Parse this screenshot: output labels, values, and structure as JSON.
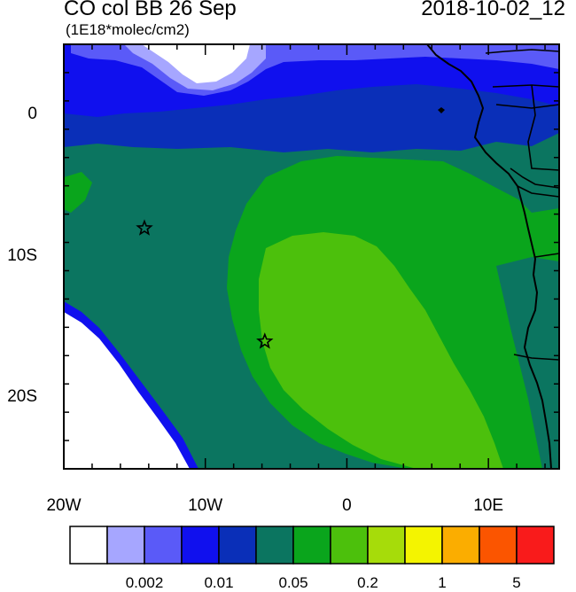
{
  "header": {
    "title": "CO col BB 26 Sep",
    "subtitle": "(1E18*molec/cm2)",
    "date": "2018-10-02_12"
  },
  "axes": {
    "x_ticks": [
      {
        "label": "20W",
        "lon": -20
      },
      {
        "label": "10W",
        "lon": -10
      },
      {
        "label": "0",
        "lon": 0
      },
      {
        "label": "10E",
        "lon": 10
      }
    ],
    "y_ticks": [
      {
        "label": "0",
        "lat": 0
      },
      {
        "label": "10S",
        "lat": -10
      },
      {
        "label": "20S",
        "lat": -20
      }
    ],
    "lon_range": [
      -20,
      15
    ],
    "lat_range": [
      -25,
      5
    ]
  },
  "markers": [
    {
      "name": "star-marker-1",
      "lon": -14.3,
      "lat": -8.0
    },
    {
      "name": "star-marker-2",
      "lon": -5.8,
      "lat": -16.0
    }
  ],
  "colorbar": {
    "colors": [
      "#ffffff",
      "#a6a6ff",
      "#5a5af8",
      "#1010ee",
      "#0a2fb8",
      "#0b7560",
      "#0aa51c",
      "#4cc00c",
      "#a6dc0a",
      "#f4f400",
      "#fbad00",
      "#fb5500",
      "#f91b1b"
    ],
    "labels": [
      {
        "text": "0.002",
        "boundary": 2
      },
      {
        "text": "0.01",
        "boundary": 4
      },
      {
        "text": "0.05",
        "boundary": 6
      },
      {
        "text": "0.2",
        "boundary": 8
      },
      {
        "text": "1",
        "boundary": 10
      },
      {
        "text": "5",
        "boundary": 12
      }
    ]
  }
}
